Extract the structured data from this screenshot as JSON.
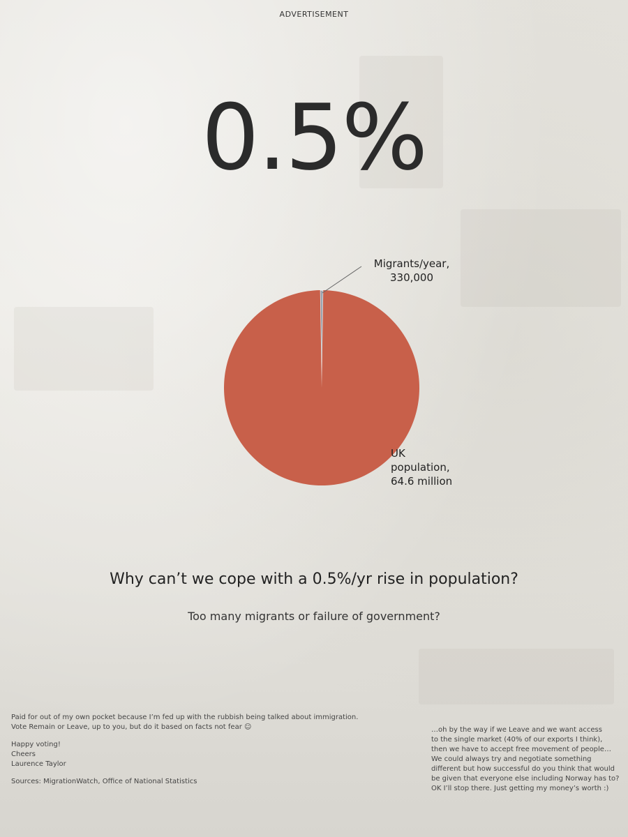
{
  "ad_label": "ADVERTISEMENT",
  "headline": "0.5%",
  "chart_data": {
    "type": "pie",
    "slices": [
      {
        "name": "Migrants/year",
        "value": 330000,
        "label_line1": "Migrants/year,",
        "label_line2": "330,000",
        "color": "#9aa3ad"
      },
      {
        "name": "UK population",
        "value": 64600000,
        "label_line1": "UK",
        "label_line2": "population,",
        "label_line3": "64.6 million",
        "color": "#c8604a"
      }
    ]
  },
  "question": "Why can’t we cope with a 0.5%/yr rise in population?",
  "subquestion": "Too many migrants or failure of government?",
  "footer_left": {
    "line1": "Paid for out of my own pocket because I’m fed up with the rubbish being talked about immigration.",
    "line2": "Vote Remain or Leave, up to you, but do it based on facts not fear ☺",
    "line3": "Happy voting!",
    "line4": "Cheers",
    "line5": "Laurence Taylor",
    "sources": "Sources: MigrationWatch,  Office of National Statistics"
  },
  "footer_right": {
    "line1": "…oh by the way if we Leave and we want access",
    "line2": "to the single market (40% of our exports I think),",
    "line3": "then we have to accept free movement of people…",
    "line4": "We could always try and negotiate something",
    "line5": "different but how successful do you think that would",
    "line6": "be given that everyone else including Norway has to?",
    "line7": "OK I’ll stop there.  Just getting my money’s worth :)"
  }
}
